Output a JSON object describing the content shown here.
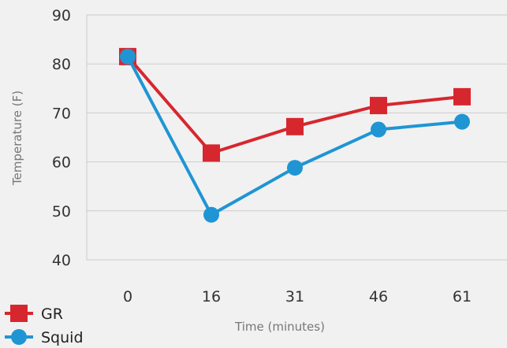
{
  "chart_data": {
    "type": "line",
    "categories": [
      "0",
      "16",
      "31",
      "46",
      "61"
    ],
    "series": [
      {
        "name": "GR",
        "values": [
          81.5,
          61.8,
          67.2,
          71.5,
          73.3
        ],
        "color": "#d7272e",
        "marker": "square"
      },
      {
        "name": "Squid",
        "values": [
          81.5,
          49.2,
          58.8,
          66.6,
          68.2
        ],
        "color": "#1f95d4",
        "marker": "circle"
      }
    ],
    "title": "",
    "xlabel": "Time (minutes)",
    "ylabel": "Temperature (F)",
    "ylim": [
      40,
      90
    ],
    "yticks": [
      40,
      50,
      60,
      70,
      80,
      90
    ],
    "grid": true,
    "legend_position": "bottom-left"
  }
}
